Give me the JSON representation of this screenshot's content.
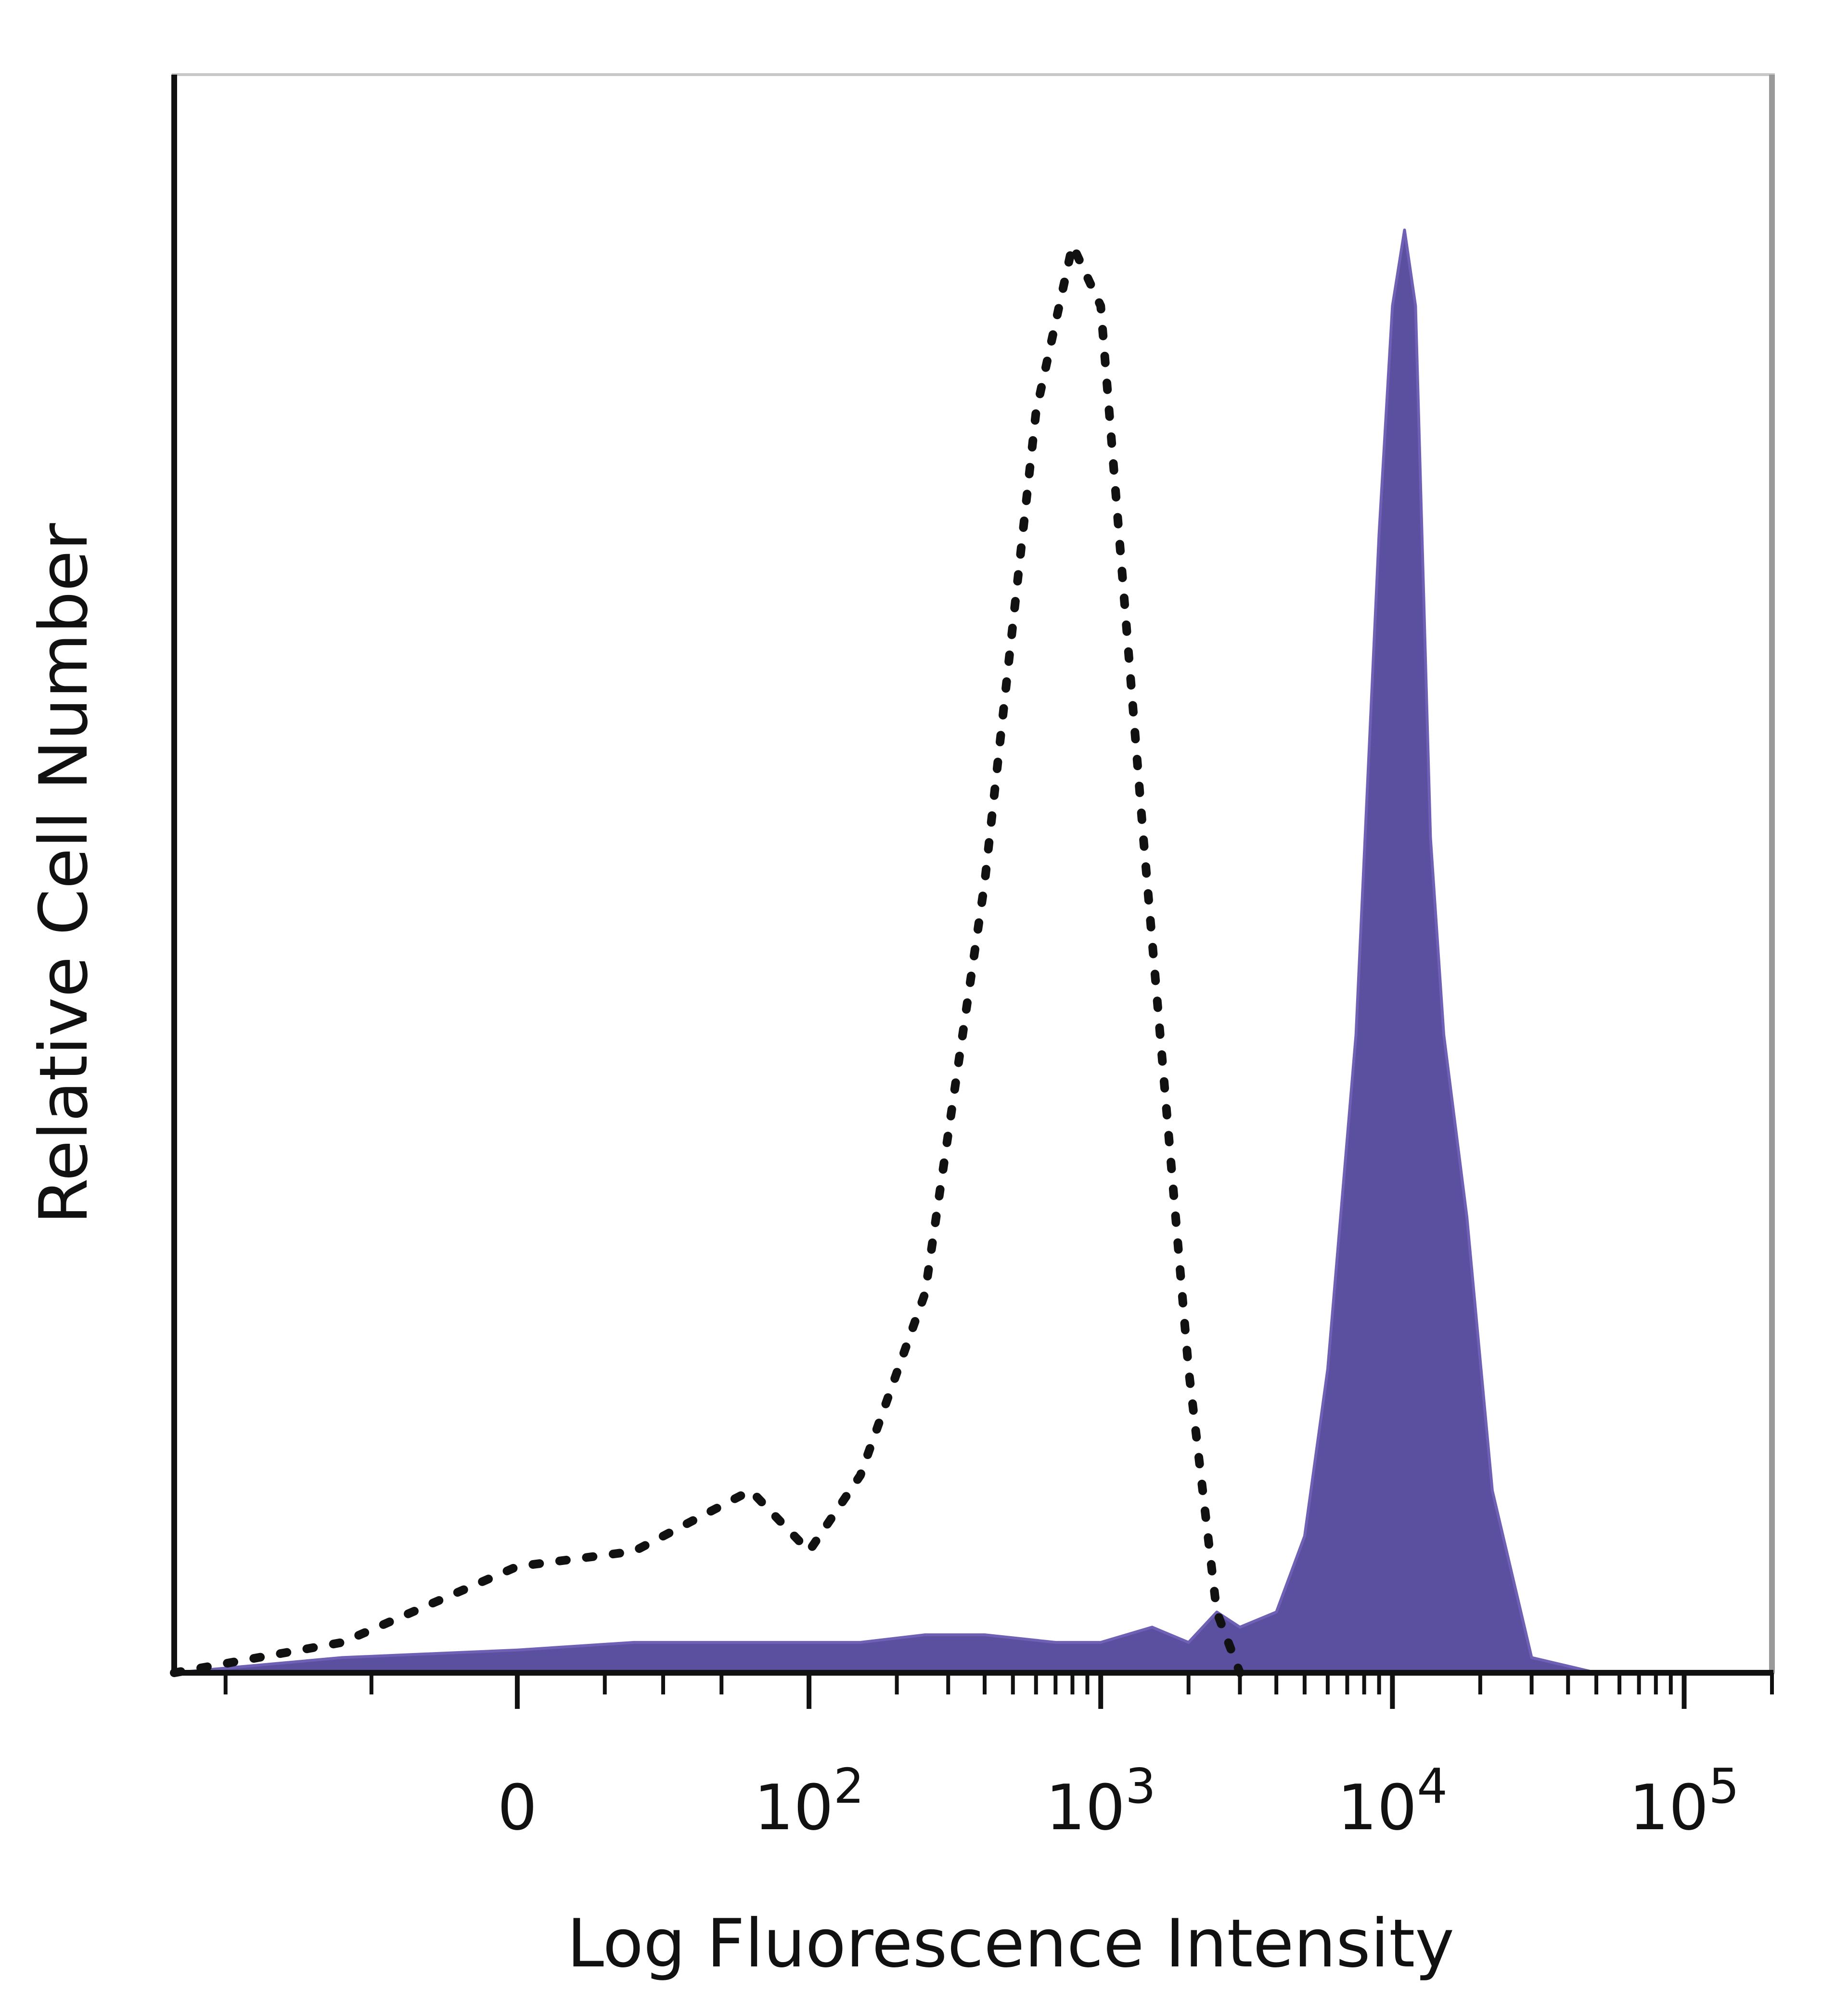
{
  "chart_data": {
    "type": "area",
    "xlabel": "Log Fluorescence Intensity",
    "ylabel": "Relative Cell Number",
    "x_scale": "biexponential",
    "grid": false,
    "legend": "none",
    "xlim": [
      -150,
      200000
    ],
    "ylim": [
      0,
      1
    ],
    "x_ticks": [
      {
        "value": 0,
        "label": "0"
      },
      {
        "value": 100,
        "base": "10",
        "exp": "2"
      },
      {
        "value": 1000,
        "base": "10",
        "exp": "3"
      },
      {
        "value": 10000,
        "base": "10",
        "exp": "4"
      },
      {
        "value": 100000,
        "base": "10",
        "exp": "5"
      }
    ],
    "colors": {
      "filled": "#5b4fa0",
      "filled_edge": "#6f5fb5",
      "dotted": "#111111",
      "axis": "#111111",
      "frame": "#c8c8c8"
    },
    "series": [
      {
        "style": "dotted-outline",
        "x": [
          -150,
          -60,
          0,
          40,
          80,
          100,
          150,
          250,
          400,
          600,
          800,
          1000,
          1400,
          2000,
          2500,
          3000
        ],
        "y": [
          0.0,
          0.02,
          0.07,
          0.08,
          0.12,
          0.08,
          0.13,
          0.25,
          0.52,
          0.83,
          0.94,
          0.9,
          0.55,
          0.2,
          0.04,
          0.0
        ]
      },
      {
        "style": "filled",
        "x": [
          -150,
          -60,
          0,
          40,
          80,
          150,
          250,
          400,
          700,
          1000,
          1500,
          2000,
          2500,
          3000,
          4000,
          5000,
          6000,
          7500,
          9000,
          10000,
          11000,
          12000,
          13500,
          15000,
          18000,
          22000,
          30000,
          50000,
          100000,
          200000
        ],
        "y": [
          0.0,
          0.01,
          0.015,
          0.02,
          0.02,
          0.02,
          0.025,
          0.025,
          0.02,
          0.02,
          0.03,
          0.02,
          0.04,
          0.03,
          0.04,
          0.09,
          0.2,
          0.42,
          0.75,
          0.9,
          0.95,
          0.9,
          0.55,
          0.42,
          0.3,
          0.12,
          0.01,
          0.0,
          0.0,
          0.0
        ]
      }
    ]
  }
}
